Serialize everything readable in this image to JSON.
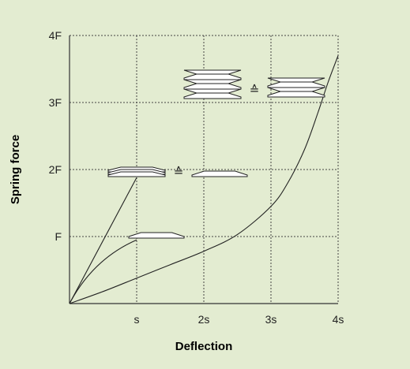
{
  "chart_data": {
    "type": "line",
    "xlabel": "Deflection",
    "ylabel": "Spring force",
    "x_ticks": [
      "",
      "s",
      "2s",
      "3s",
      "4s"
    ],
    "y_ticks": [
      "",
      "F",
      "2F",
      "3F",
      "4F"
    ],
    "xlim": [
      0,
      4
    ],
    "ylim": [
      0,
      4
    ],
    "grid": true,
    "series": [
      {
        "x": [
          0,
          1
        ],
        "y": [
          0,
          1.88
        ],
        "kind": "linear"
      },
      {
        "x": [
          0,
          1
        ],
        "y": [
          0,
          0.95
        ],
        "kind": "concave"
      },
      {
        "x": [
          0,
          0.5,
          1,
          1.5,
          2,
          2.5,
          3,
          3.25,
          3.5,
          3.7,
          3.85,
          4.0
        ],
        "y": [
          0,
          0.18,
          0.38,
          0.58,
          0.78,
          1.03,
          1.45,
          1.8,
          2.3,
          2.85,
          3.3,
          3.7
        ],
        "kind": "progressive"
      }
    ],
    "annotations": [
      {
        "text": "≙",
        "meaning": "corresponds to (stacked disc springs)"
      },
      {
        "text": "≙",
        "meaning": "corresponds to (spring stack)"
      }
    ]
  },
  "colors": {
    "background": "#e3ecd1",
    "plot_background": "#e3ecd1",
    "axis": "#333333",
    "grid": "#444444",
    "curve": "#222222",
    "spring_fill": "#ffffff",
    "spring_edge": "#222222"
  }
}
